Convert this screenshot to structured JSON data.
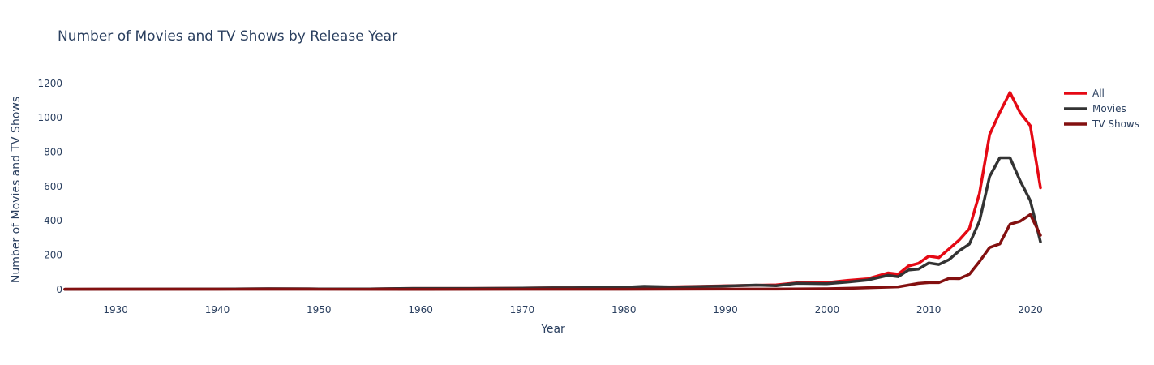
{
  "chart_data": {
    "type": "line",
    "title": "Number of Movies and TV Shows by Release Year",
    "xlabel": "Year",
    "ylabel": "Number of Movies and TV Shows",
    "xlim": [
      1925,
      2021
    ],
    "ylim": [
      -15,
      1270
    ],
    "xticks": [
      1930,
      1940,
      1950,
      1960,
      1970,
      1980,
      1990,
      2000,
      2010,
      2020
    ],
    "yticks": [
      0,
      200,
      400,
      600,
      800,
      1000,
      1200
    ],
    "grid": false,
    "legend_position": "top-right",
    "series": [
      {
        "name": "All",
        "color": "#e50914",
        "points": [
          [
            1925,
            1
          ],
          [
            1940,
            2
          ],
          [
            1945,
            4
          ],
          [
            1950,
            3
          ],
          [
            1955,
            3
          ],
          [
            1958,
            5
          ],
          [
            1960,
            6
          ],
          [
            1965,
            6
          ],
          [
            1970,
            7
          ],
          [
            1973,
            9
          ],
          [
            1975,
            9
          ],
          [
            1980,
            12
          ],
          [
            1985,
            15
          ],
          [
            1990,
            21
          ],
          [
            1995,
            26
          ],
          [
            1997,
            38
          ],
          [
            2000,
            40
          ],
          [
            2002,
            52
          ],
          [
            2004,
            62
          ],
          [
            2006,
            96
          ],
          [
            2007,
            89
          ],
          [
            2008,
            136
          ],
          [
            2009,
            152
          ],
          [
            2010,
            194
          ],
          [
            2011,
            185
          ],
          [
            2012,
            236
          ],
          [
            2013,
            288
          ],
          [
            2014,
            354
          ],
          [
            2015,
            560
          ],
          [
            2016,
            902
          ],
          [
            2017,
            1032
          ],
          [
            2018,
            1147
          ],
          [
            2019,
            1030
          ],
          [
            2020,
            953
          ],
          [
            2021,
            592
          ]
        ]
      },
      {
        "name": "Movies",
        "color": "#333333",
        "points": [
          [
            1925,
            1
          ],
          [
            1940,
            2
          ],
          [
            1945,
            4
          ],
          [
            1950,
            3
          ],
          [
            1955,
            3
          ],
          [
            1958,
            5
          ],
          [
            1960,
            6
          ],
          [
            1965,
            6
          ],
          [
            1970,
            7
          ],
          [
            1973,
            9
          ],
          [
            1975,
            9
          ],
          [
            1980,
            12
          ],
          [
            1982,
            18
          ],
          [
            1985,
            14
          ],
          [
            1990,
            20
          ],
          [
            1993,
            25
          ],
          [
            1995,
            22
          ],
          [
            1997,
            36
          ],
          [
            2000,
            33
          ],
          [
            2002,
            43
          ],
          [
            2004,
            55
          ],
          [
            2006,
            82
          ],
          [
            2007,
            74
          ],
          [
            2008,
            113
          ],
          [
            2009,
            118
          ],
          [
            2010,
            154
          ],
          [
            2011,
            145
          ],
          [
            2012,
            173
          ],
          [
            2013,
            225
          ],
          [
            2014,
            264
          ],
          [
            2015,
            398
          ],
          [
            2016,
            658
          ],
          [
            2017,
            767
          ],
          [
            2018,
            767
          ],
          [
            2019,
            633
          ],
          [
            2020,
            517
          ],
          [
            2021,
            277
          ]
        ]
      },
      {
        "name": "TV Shows",
        "color": "#831010",
        "points": [
          [
            1925,
            1
          ],
          [
            1945,
            1
          ],
          [
            1960,
            0
          ],
          [
            1970,
            1
          ],
          [
            1980,
            1
          ],
          [
            1990,
            2
          ],
          [
            1995,
            2
          ],
          [
            2000,
            4
          ],
          [
            2003,
            8
          ],
          [
            2007,
            15
          ],
          [
            2008,
            25
          ],
          [
            2009,
            35
          ],
          [
            2010,
            40
          ],
          [
            2011,
            40
          ],
          [
            2012,
            64
          ],
          [
            2013,
            63
          ],
          [
            2014,
            88
          ],
          [
            2015,
            162
          ],
          [
            2016,
            244
          ],
          [
            2017,
            265
          ],
          [
            2018,
            380
          ],
          [
            2019,
            397
          ],
          [
            2020,
            436
          ],
          [
            2021,
            315
          ]
        ]
      }
    ]
  }
}
